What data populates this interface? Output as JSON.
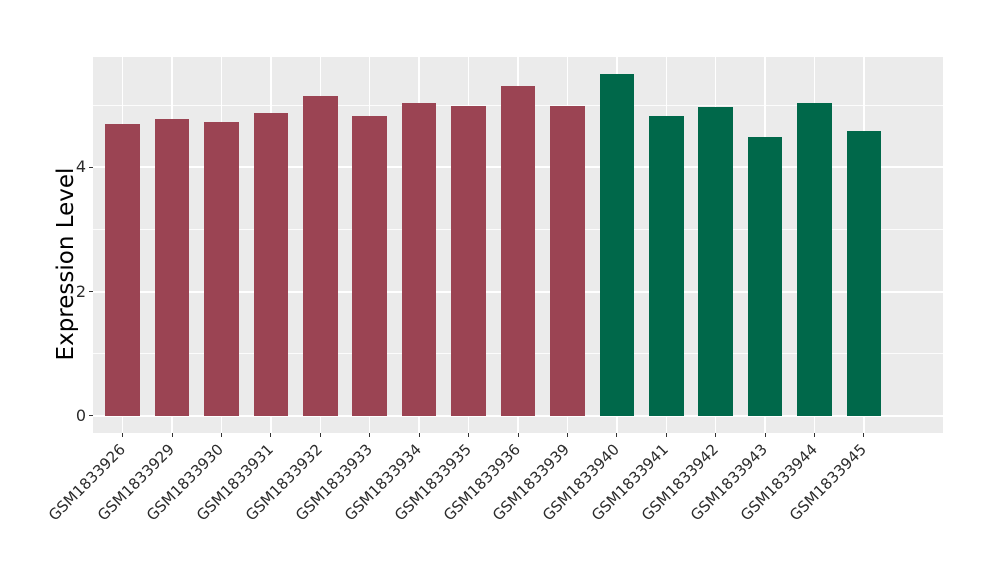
{
  "chart_data": {
    "type": "bar",
    "title": "",
    "ylabel": "Expression Level",
    "xlabel": "",
    "categories": [
      "GSM1833926",
      "GSM1833929",
      "GSM1833930",
      "GSM1833931",
      "GSM1833932",
      "GSM1833933",
      "GSM1833934",
      "GSM1833935",
      "GSM1833936",
      "GSM1833939",
      "GSM1833940",
      "GSM1833941",
      "GSM1833942",
      "GSM1833943",
      "GSM1833944",
      "GSM1833945"
    ],
    "values": [
      4.69,
      4.78,
      4.73,
      4.88,
      5.15,
      4.83,
      5.03,
      4.98,
      5.31,
      4.98,
      5.5,
      4.83,
      4.97,
      4.49,
      5.03,
      4.58
    ],
    "bar_colors": [
      "#9B4453",
      "#9B4453",
      "#9B4453",
      "#9B4453",
      "#9B4453",
      "#9B4453",
      "#9B4453",
      "#9B4453",
      "#9B4453",
      "#9B4453",
      "#00684A",
      "#00684A",
      "#00684A",
      "#00684A",
      "#00684A",
      "#00684A"
    ],
    "group_colors": {
      "left_group": "#9B4453",
      "right_group": "#00684A"
    },
    "ylim": [
      -0.275,
      5.775
    ],
    "yticks": [
      0,
      2,
      4
    ],
    "ytick_labels": [
      "0",
      "2",
      "4"
    ],
    "yminor": [
      1,
      3,
      5
    ],
    "grid": "on",
    "legend_position": "none",
    "panel_bg": "#EBEBEB",
    "grid_color": "#FFFFFF",
    "tick_color": "#333333",
    "axis_text_color": "#2b2b2b",
    "bar_width_fraction": 0.7
  }
}
